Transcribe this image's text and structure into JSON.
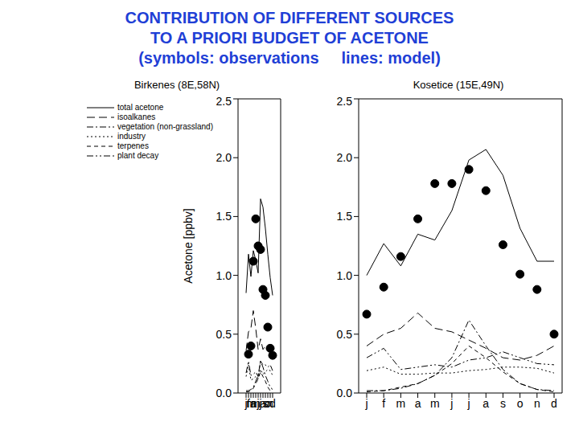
{
  "title": [
    "CONTRIBUTION OF DIFFERENT SOURCES",
    "TO A PRIORI BUDGET OF ACETONE",
    "(symbols: observations     lines: model)"
  ],
  "chart_data": [
    {
      "type": "line",
      "title": "Birkenes (8E,58N)",
      "ylabel": "Acetone [ppbv]",
      "categories": [
        "j",
        "f",
        "m",
        "a",
        "m",
        "j",
        "j",
        "a",
        "s",
        "o",
        "n",
        "d"
      ],
      "ylim": [
        0,
        2.5
      ],
      "yticks": [
        {
          "value": 0,
          "label": "0.0"
        },
        0.5,
        {
          "value": 1,
          "label": "1.0"
        },
        1.5,
        {
          "value": 2,
          "label": "2.0"
        },
        2.5
      ],
      "legend": "upper left",
      "series": [
        {
          "name": "total acetone",
          "color": "#000000",
          "line_style": "solid",
          "values": [
            0.85,
            1.18,
            0.99,
            1.21,
            1.13,
            1.02,
            1.65,
            1.58,
            1.4,
            1.18,
            0.98,
            0.83
          ]
        },
        {
          "name": "isoalkanes",
          "color": "#000000",
          "line_style": "long_dash",
          "values": [
            0.36,
            0.52,
            0.55,
            0.7,
            0.55,
            0.37,
            0.46,
            0.37,
            0.4,
            0.37,
            0.36,
            0.33
          ]
        },
        {
          "name": "vegetation (non-grassland)",
          "color": "#000000",
          "line_style": "dash_dot",
          "values": [
            0.02,
            0.02,
            0.03,
            0.05,
            0.1,
            0.15,
            0.27,
            0.22,
            0.15,
            0.1,
            0.05,
            0.03
          ]
        },
        {
          "name": "industry",
          "color": "#000000",
          "line_style": "dotted",
          "values": [
            0.14,
            0.24,
            0.11,
            0.12,
            0.14,
            0.12,
            0.2,
            0.16,
            0.18,
            0.2,
            0.19,
            0.15
          ]
        },
        {
          "name": "terpenes",
          "color": "#000000",
          "line_style": "dashed",
          "values": [
            0.01,
            0.01,
            0.02,
            0.04,
            0.08,
            0.12,
            0.18,
            0.14,
            0.1,
            0.05,
            0.02,
            0.01
          ]
        },
        {
          "name": "plant decay",
          "color": "#000000",
          "line_style": "dash_dot_dot",
          "values": [
            0.17,
            0.27,
            0.15,
            0.16,
            0.18,
            0.14,
            0.27,
            0.24,
            0.24,
            0.22,
            0.24,
            0.19
          ]
        }
      ],
      "observations": {
        "type": "scatter",
        "marker": "circle",
        "color": "#000000",
        "values": [
          null,
          0.33,
          0.4,
          1.12,
          1.48,
          1.25,
          1.22,
          0.88,
          0.83,
          0.56,
          0.38,
          0.32
        ]
      }
    },
    {
      "type": "line",
      "title": "Kosetice (15E,49N)",
      "categories": [
        "j",
        "f",
        "m",
        "a",
        "m",
        "j",
        "j",
        "a",
        "s",
        "o",
        "n",
        "d"
      ],
      "ylim": [
        0,
        2.5
      ],
      "yticks": [
        {
          "value": 0,
          "label": "0.0"
        },
        0.5,
        {
          "value": 1,
          "label": "1.0"
        },
        1.5,
        {
          "value": 2,
          "label": "2.0"
        },
        2.5
      ],
      "series": [
        {
          "name": "total acetone",
          "color": "#000000",
          "line_style": "solid",
          "values": [
            1.0,
            1.27,
            1.08,
            1.35,
            1.3,
            1.55,
            1.98,
            2.07,
            1.85,
            1.4,
            1.12,
            1.12
          ]
        },
        {
          "name": "isoalkanes",
          "color": "#000000",
          "line_style": "long_dash",
          "values": [
            0.4,
            0.5,
            0.55,
            0.68,
            0.55,
            0.52,
            0.45,
            0.38,
            0.3,
            0.28,
            0.32,
            0.4
          ]
        },
        {
          "name": "vegetation (non-grassland)",
          "color": "#000000",
          "line_style": "dash_dot",
          "values": [
            0.02,
            0.02,
            0.04,
            0.08,
            0.15,
            0.3,
            0.62,
            0.4,
            0.2,
            0.08,
            0.03,
            0.02
          ]
        },
        {
          "name": "industry",
          "color": "#000000",
          "line_style": "dotted",
          "values": [
            0.19,
            0.22,
            0.16,
            0.16,
            0.17,
            0.17,
            0.19,
            0.2,
            0.22,
            0.22,
            0.21,
            0.17
          ]
        },
        {
          "name": "terpenes",
          "color": "#000000",
          "line_style": "dashed",
          "values": [
            0.01,
            0.02,
            0.05,
            0.08,
            0.15,
            0.25,
            0.4,
            0.3,
            0.18,
            0.08,
            0.03,
            0.01
          ]
        },
        {
          "name": "plant decay",
          "color": "#000000",
          "line_style": "dash_dot_dot",
          "values": [
            0.3,
            0.38,
            0.2,
            0.22,
            0.24,
            0.22,
            0.28,
            0.3,
            0.35,
            0.3,
            0.25,
            0.24
          ]
        }
      ],
      "observations": {
        "type": "scatter",
        "marker": "circle",
        "color": "#000000",
        "values": [
          0.67,
          0.9,
          1.16,
          1.48,
          1.78,
          1.78,
          1.9,
          1.72,
          1.26,
          1.01,
          0.88,
          0.5
        ]
      }
    }
  ]
}
